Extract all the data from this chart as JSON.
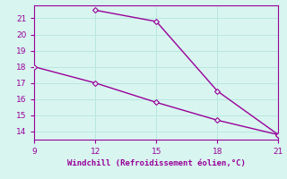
{
  "line1_x": [
    12,
    15,
    18,
    21
  ],
  "line1_y": [
    21.5,
    20.8,
    16.5,
    13.8
  ],
  "line2_x": [
    9,
    12,
    15,
    18,
    21
  ],
  "line2_y": [
    18.0,
    17.0,
    15.8,
    14.7,
    13.8
  ],
  "line_color": "#990099",
  "bg_color": "#d8f5f0",
  "grid_color": "#b8e8e0",
  "xlabel": "Windchill (Refroidissement éolien,°C)",
  "xlabel_color": "#990099",
  "tick_color": "#990099",
  "xlim": [
    9,
    21
  ],
  "ylim": [
    13.5,
    21.8
  ],
  "xticks": [
    9,
    12,
    15,
    18,
    21
  ],
  "yticks": [
    14,
    15,
    16,
    17,
    18,
    19,
    20,
    21
  ],
  "markersize": 3,
  "linewidth": 1.0
}
